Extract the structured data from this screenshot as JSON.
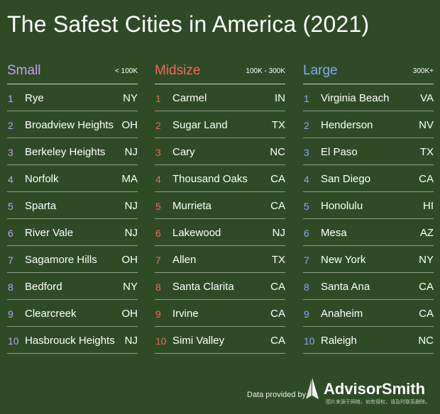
{
  "title": "The Safest Cities in America (2021)",
  "colors": {
    "background": "#2e4b25",
    "small": "#c2a0ea",
    "midsize": "#ef6a5a",
    "large": "#84a8f5"
  },
  "columns": [
    {
      "name": "Small",
      "range": "< 100K",
      "rows": [
        {
          "rank": "1",
          "city": "Rye",
          "state": "NY"
        },
        {
          "rank": "2",
          "city": "Broadview Heights",
          "state": "OH"
        },
        {
          "rank": "3",
          "city": "Berkeley Heights",
          "state": "NJ"
        },
        {
          "rank": "4",
          "city": "Norfolk",
          "state": "MA"
        },
        {
          "rank": "5",
          "city": "Sparta",
          "state": "NJ"
        },
        {
          "rank": "6",
          "city": "River Vale",
          "state": "NJ"
        },
        {
          "rank": "7",
          "city": "Sagamore Hills",
          "state": "OH"
        },
        {
          "rank": "8",
          "city": "Bedford",
          "state": "NY"
        },
        {
          "rank": "9",
          "city": "Clearcreek",
          "state": "OH"
        },
        {
          "rank": "10",
          "city": "Hasbrouck Heights",
          "state": "NJ"
        }
      ]
    },
    {
      "name": "Midsize",
      "range": "100K - 300K",
      "rows": [
        {
          "rank": "1",
          "city": "Carmel",
          "state": "IN"
        },
        {
          "rank": "2",
          "city": "Sugar Land",
          "state": "TX"
        },
        {
          "rank": "3",
          "city": "Cary",
          "state": "NC"
        },
        {
          "rank": "4",
          "city": "Thousand Oaks",
          "state": "CA"
        },
        {
          "rank": "5",
          "city": "Murrieta",
          "state": "CA"
        },
        {
          "rank": "6",
          "city": "Lakewood",
          "state": "NJ"
        },
        {
          "rank": "7",
          "city": "Allen",
          "state": "TX"
        },
        {
          "rank": "8",
          "city": "Santa Clarita",
          "state": "CA"
        },
        {
          "rank": "9",
          "city": "Irvine",
          "state": "CA"
        },
        {
          "rank": "10",
          "city": "Simi Valley",
          "state": "CA"
        }
      ]
    },
    {
      "name": "Large",
      "range": "300K+",
      "rows": [
        {
          "rank": "1",
          "city": "Virginia Beach",
          "state": "VA"
        },
        {
          "rank": "2",
          "city": "Henderson",
          "state": "NV"
        },
        {
          "rank": "3",
          "city": "El Paso",
          "state": "TX"
        },
        {
          "rank": "4",
          "city": "San Diego",
          "state": "CA"
        },
        {
          "rank": "5",
          "city": "Honolulu",
          "state": "HI"
        },
        {
          "rank": "6",
          "city": "Mesa",
          "state": "AZ"
        },
        {
          "rank": "7",
          "city": "New York",
          "state": "NY"
        },
        {
          "rank": "8",
          "city": "Santa Ana",
          "state": "CA"
        },
        {
          "rank": "9",
          "city": "Anaheim",
          "state": "CA"
        },
        {
          "rank": "10",
          "city": "Raleigh",
          "state": "NC"
        }
      ]
    }
  ],
  "footer": {
    "provided_by": "Data provided by",
    "brand": "AdvisorSmith",
    "logo_icon": "sail-logo-icon",
    "fine_print": "图片来源于网络，如有侵权，请及时联系删除。"
  }
}
